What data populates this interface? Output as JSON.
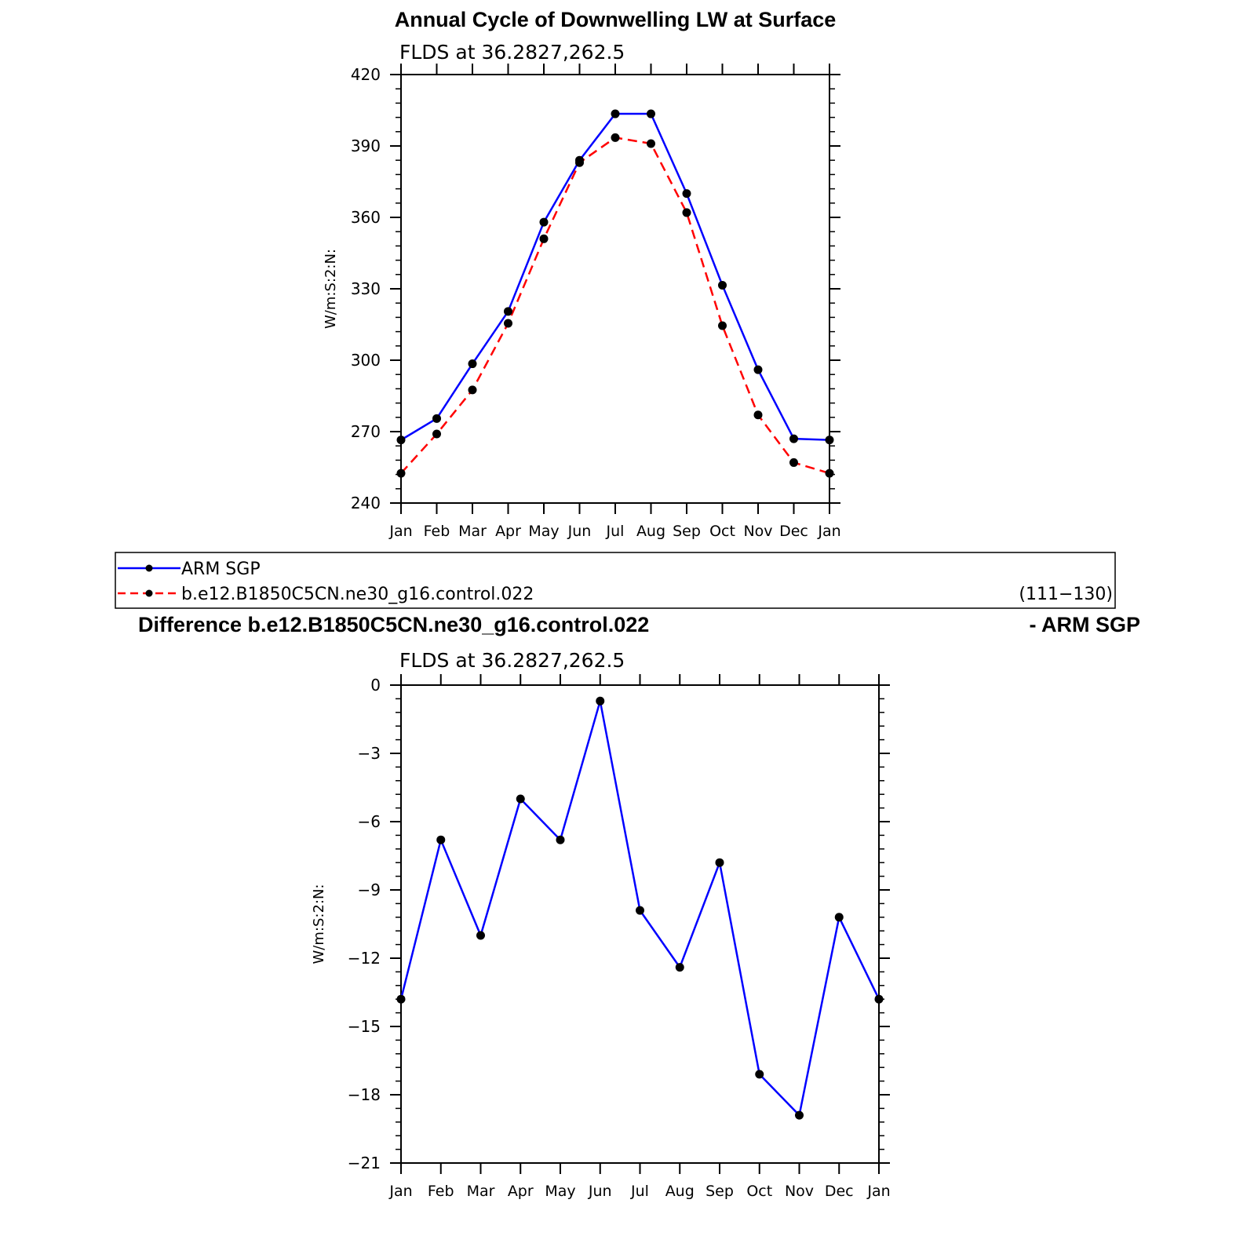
{
  "figure": {
    "main_title": "Annual Cycle of Downwelling LW at Surface",
    "diff_title_left": "Difference b.e12.B1850C5CN.ne30_g16.control.022",
    "diff_title_right": "- ARM SGP"
  },
  "legend": {
    "entries": [
      {
        "label": "ARM SGP",
        "color": "#0000ff",
        "dash": "solid"
      },
      {
        "label": "b.e12.B1850C5CN.ne30_g16.control.022",
        "color": "#ff0000",
        "dash": "dashed"
      }
    ],
    "years": "(111−130)"
  },
  "chart_data": [
    {
      "type": "line",
      "subtitle": "FLDS at 36.2827,262.5",
      "ylabel": "W/m:S:2:N:",
      "xlabel": "",
      "categories": [
        "Jan",
        "Feb",
        "Mar",
        "Apr",
        "May",
        "Jun",
        "Jul",
        "Aug",
        "Sep",
        "Oct",
        "Nov",
        "Dec",
        "Jan"
      ],
      "ylim": [
        240,
        420
      ],
      "yticks": [
        240,
        270,
        300,
        330,
        360,
        390,
        420
      ],
      "ytick_labels": [
        "240",
        "270",
        "300",
        "330",
        "360",
        "390",
        "420"
      ],
      "grid": false,
      "series": [
        {
          "name": "ARM SGP",
          "color": "#0000ff",
          "dash": "solid",
          "values": [
            266.5,
            275.5,
            298.5,
            320.5,
            358,
            384,
            403.5,
            403.5,
            370,
            331.5,
            296,
            267,
            266.5
          ]
        },
        {
          "name": "b.e12.B1850C5CN.ne30_g16.control.022",
          "color": "#ff0000",
          "dash": "dashed",
          "values": [
            252.5,
            269,
            287.5,
            315.5,
            351,
            383,
            393.5,
            391,
            362,
            314.5,
            277,
            257,
            252.5
          ]
        }
      ]
    },
    {
      "type": "line",
      "subtitle": "FLDS at 36.2827,262.5",
      "ylabel": "W/m:S:2:N:",
      "xlabel": "",
      "categories": [
        "Jan",
        "Feb",
        "Mar",
        "Apr",
        "May",
        "Jun",
        "Jul",
        "Aug",
        "Sep",
        "Oct",
        "Nov",
        "Dec",
        "Jan"
      ],
      "ylim": [
        -21,
        0
      ],
      "yticks": [
        -21,
        -18,
        -15,
        -12,
        -9,
        -6,
        -3,
        0
      ],
      "ytick_labels": [
        "−21",
        "−18",
        "−15",
        "−12",
        "−9",
        "−6",
        "−3",
        "0"
      ],
      "grid": false,
      "series": [
        {
          "color": "#0000ff",
          "dash": "solid",
          "values": [
            -13.8,
            -6.8,
            -11.0,
            -5.0,
            -6.8,
            -0.7,
            -9.9,
            -12.4,
            -7.8,
            -17.1,
            -18.9,
            -10.2,
            -13.8
          ]
        }
      ]
    }
  ]
}
